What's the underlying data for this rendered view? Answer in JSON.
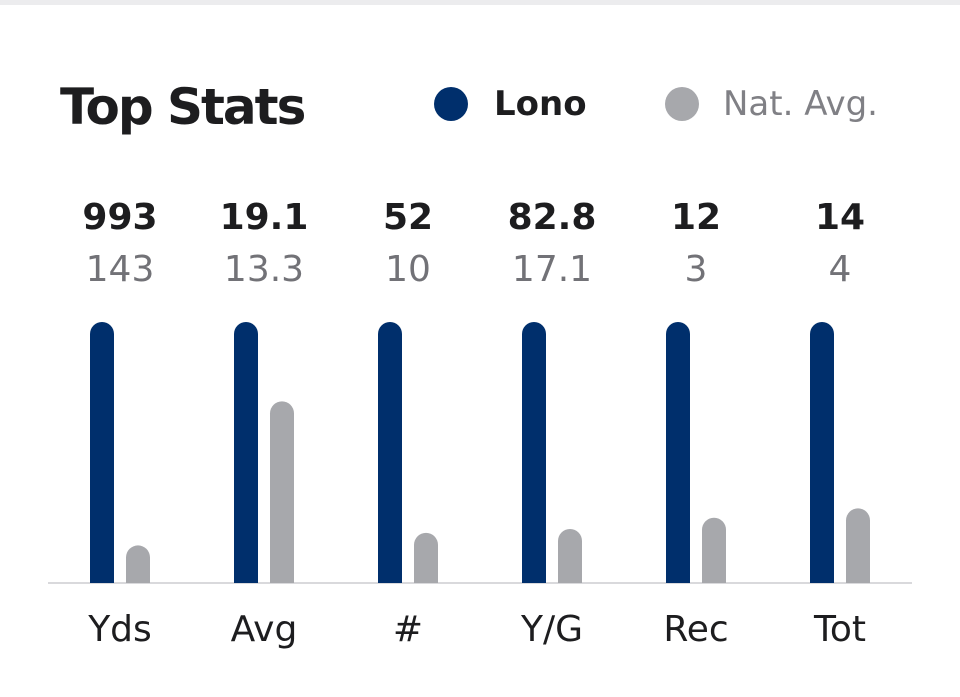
{
  "chart_data": {
    "type": "bar",
    "title": "Top Stats",
    "categories": [
      "Yds",
      "Avg",
      "#",
      "Y/G",
      "Rec",
      "Tot"
    ],
    "series": [
      {
        "name": "Lono",
        "labels": [
          "993",
          "19.1",
          "52",
          "82.8",
          "12",
          "14"
        ],
        "values": [
          993,
          19.1,
          52,
          82.8,
          12,
          14
        ],
        "relative_height": [
          1,
          1,
          1,
          1,
          1,
          1
        ]
      },
      {
        "name": "Nat. Avg.",
        "labels": [
          "143",
          "13.3",
          "10",
          "17.1",
          "3",
          "4"
        ],
        "values": [
          143,
          13.3,
          10,
          17.1,
          3,
          4
        ],
        "relative_height": [
          0.144,
          0.696,
          0.192,
          0.207,
          0.25,
          0.286
        ]
      }
    ],
    "xlabel": "",
    "ylabel": "",
    "legend": "top-right",
    "grid": false
  },
  "colors": {
    "primary": "#002f6c",
    "secondary": "#a7a8ac",
    "baseline": "#d9d9dc"
  }
}
